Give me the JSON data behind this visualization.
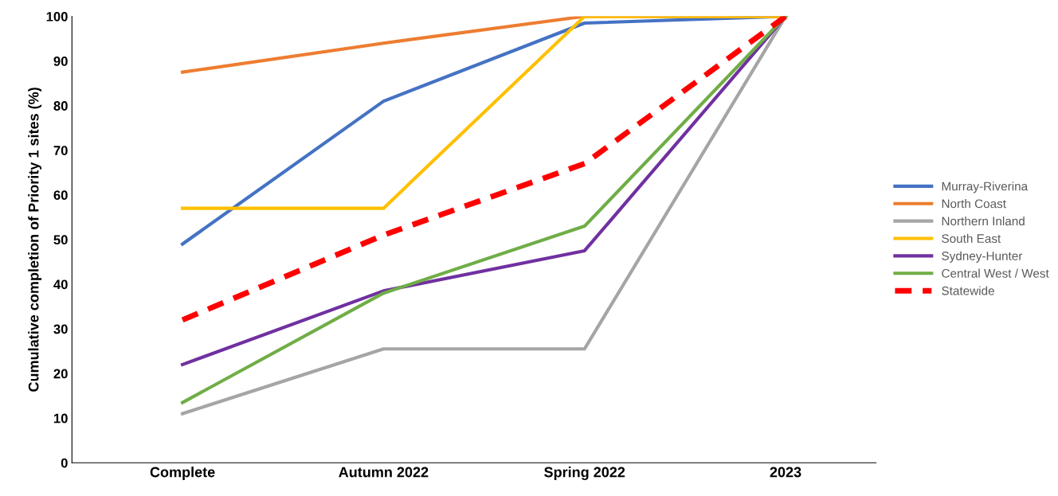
{
  "chart_data": {
    "type": "line",
    "ylabel": "Cumulative completion of Priority 1 sites (%)",
    "categories": [
      "Complete",
      "Autumn 2022",
      "Spring 2022",
      "2023"
    ],
    "series": [
      {
        "name": "Murray-Riverina",
        "color": "#4472c4",
        "values": [
          49,
          81,
          98.5,
          100
        ]
      },
      {
        "name": "North Coast",
        "color": "#ed7d31",
        "values": [
          87.5,
          94,
          100,
          100
        ]
      },
      {
        "name": "Northern Inland",
        "color": "#a5a5a5",
        "values": [
          11,
          25.5,
          25.5,
          100
        ]
      },
      {
        "name": "South East",
        "color": "#ffc000",
        "values": [
          57,
          57,
          100,
          100
        ]
      },
      {
        "name": "Sydney-Hunter",
        "color": "#7030a0",
        "values": [
          22,
          38.5,
          47.5,
          100
        ]
      },
      {
        "name": "Central West / West",
        "color": "#70ad47",
        "values": [
          13.5,
          38,
          53,
          100
        ]
      },
      {
        "name": "Statewide",
        "color": "#ff0000",
        "values": [
          32,
          51,
          67,
          100
        ],
        "line_style": "dashed"
      }
    ],
    "ylim": [
      0,
      100
    ],
    "yticks": [
      0,
      10,
      20,
      30,
      40,
      50,
      60,
      70,
      80,
      90,
      100
    ],
    "grid": false,
    "legend": "right",
    "marker": "none",
    "line_style": "solid"
  }
}
